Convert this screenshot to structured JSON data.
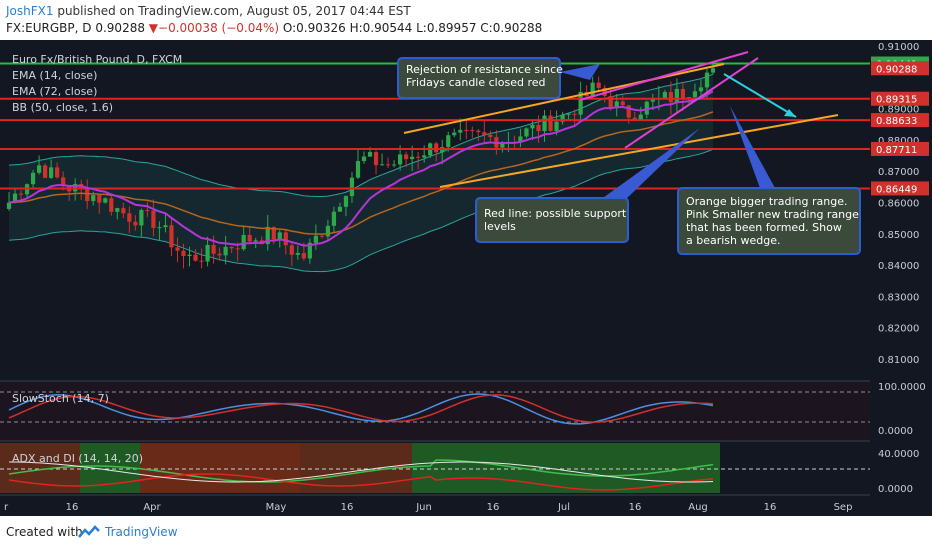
{
  "header": {
    "user": "JoshFX1",
    "published": "published on TradingView.com, August 05, 2017 04:44 EST",
    "symbol": "FX:EURGBP, D",
    "last": "0.90288",
    "change": "▼−0.00038 (−0.04%)",
    "ohlc": "O:0.90326 H:0.90544 L:0.89957 C:0.90288"
  },
  "legend": {
    "pair": "Euro Fx/British Pound, D, FXCM",
    "ema14": "EMA (14, close)",
    "ema72": "EMA (72, close)",
    "bb": "BB (50, close, 1.6)"
  },
  "price_axis": {
    "ticks": [
      "0.91000",
      "0.89000",
      "0.88000",
      "0.87000",
      "0.86000",
      "0.85000",
      "0.84000",
      "0.83000",
      "0.82000",
      "0.81000"
    ],
    "labels": [
      {
        "text": "0.90441",
        "color": "#2ea84a"
      },
      {
        "text": "0.90288",
        "color": "#d0312d"
      },
      {
        "text": "0.89315",
        "color": "#d0312d"
      },
      {
        "text": "0.88633",
        "color": "#d0312d"
      },
      {
        "text": "0.87711",
        "color": "#d0312d"
      },
      {
        "text": "0.86449",
        "color": "#d0312d"
      }
    ]
  },
  "stoch": {
    "label": "SlowStoch (14, 7)",
    "ticks": [
      "100.0000",
      "0.0000"
    ]
  },
  "adx": {
    "label": "ADX and DI (14, 14, 20)",
    "ticks": [
      "40.0000",
      "0.0000"
    ]
  },
  "time_axis": [
    "r",
    "16",
    "Apr",
    "May",
    "16",
    "Jun",
    "16",
    "Jul",
    "16",
    "Aug",
    "16",
    "Sep"
  ],
  "annotations": {
    "resistance": [
      "Rejection of resistance since",
      "Fridays candle closed red"
    ],
    "support": [
      "Red line: possible support",
      "levels"
    ],
    "wedge": [
      "Orange bigger trading range.",
      "Pink Smaller new trading range",
      "that has been formed. Show",
      "a bearish wedge."
    ]
  },
  "footer": {
    "created": "Created with",
    "brand": "TradingView"
  },
  "colors": {
    "bg": "#131722",
    "up": "#2ea84a",
    "down": "#d0312d",
    "ema14": "#b535d8",
    "ema72": "#c0392b",
    "bb": "#26a69a",
    "orange": "#f5a623",
    "pink": "#e040d0",
    "cyan": "#2ad0e0",
    "note_bg": "#3c4a3c",
    "note_border": "#2a5fd4"
  },
  "chart_data": {
    "type": "candlestick",
    "symbol": "EURGBP",
    "interval": "D",
    "ylim": [
      0.8,
      0.91
    ],
    "horizontal_levels": [
      0.90441,
      0.89315,
      0.88633,
      0.87711,
      0.86449
    ],
    "last_close": 0.90288,
    "x": [
      "Mar",
      "16",
      "Apr",
      "May",
      "16",
      "Jun",
      "16",
      "Jul",
      "16",
      "Aug",
      "16",
      "Sep"
    ],
    "close_path": [
      [
        "Mar",
        0.86
      ],
      [
        "Mar 8",
        0.872
      ],
      [
        "16",
        0.865
      ],
      [
        "Mar 25",
        0.862
      ],
      [
        "Apr",
        0.856
      ],
      [
        "Apr 10",
        0.854
      ],
      [
        "Apr 18",
        0.842
      ],
      [
        "Apr 25",
        0.844
      ],
      [
        "May",
        0.848
      ],
      [
        "May 8",
        0.85
      ],
      [
        "16",
        0.842
      ],
      [
        "May 22",
        0.856
      ],
      [
        "May 29",
        0.874
      ],
      [
        "Jun",
        0.872
      ],
      [
        "Jun 8",
        0.876
      ],
      [
        "16",
        0.88
      ],
      [
        "Jun 22",
        0.881
      ],
      [
        "Jul",
        0.88
      ],
      [
        "Jul 8",
        0.884
      ],
      [
        "16",
        0.888
      ],
      [
        "Jul 22",
        0.897
      ],
      [
        "Jul 27",
        0.888
      ],
      [
        "Jul 30",
        0.892
      ],
      [
        "Aug",
        0.895
      ],
      [
        "Aug 4",
        0.9029
      ]
    ]
  }
}
